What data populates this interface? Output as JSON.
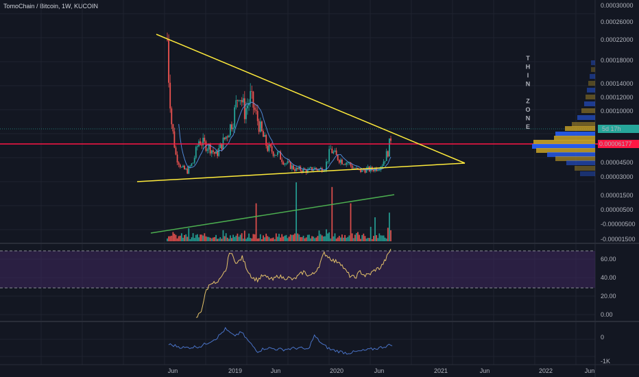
{
  "header": {
    "title": "TomoChain / Bitcoin, 1W, KUCOIN"
  },
  "annotation": {
    "lines": [
      "T",
      "H",
      "I",
      "N",
      "",
      "Z",
      "O",
      "N",
      "E"
    ]
  },
  "price_axis": {
    "ticks": [
      "0.00030000",
      "0.00026000",
      "0.00022000",
      "0.00018000",
      "0.00014000",
      "0.00012000",
      "0.00010000",
      "0.00004500",
      "0.00003000",
      "0.00001500",
      "0.00000500",
      "-0.00000500",
      "-0.00001500"
    ],
    "countdown_badge": "5d 17h",
    "current_price_badge": "0.00006177"
  },
  "rsi_axis": {
    "ticks": [
      "60.00",
      "40.00",
      "20.00",
      "0.00"
    ]
  },
  "osc_axis": {
    "ticks": [
      "0",
      "-1K"
    ]
  },
  "time_axis": {
    "ticks": [
      "Jun",
      "2019",
      "Jun",
      "2020",
      "Jun",
      "2021",
      "Jun",
      "2022",
      "Jun"
    ]
  },
  "colors": {
    "background": "#131722",
    "grid": "#1f2330",
    "up": "#26a69a",
    "down": "#ef5350",
    "trendline": "#ffeb3b",
    "volume_trend": "#4caf50",
    "price_line": "#ff1744",
    "ma": "#5b9cf6",
    "rsi_band": "#3a2458",
    "rsi_line": "#e6c46a",
    "osc_line": "#4a74c9"
  },
  "chart_data": {
    "type": "candlestick",
    "title": "TomoChain / Bitcoin, 1W, KUCOIN",
    "price_anchors": [
      [
        0,
        0.00022
      ],
      [
        1,
        0.00017
      ],
      [
        3,
        0.000105
      ],
      [
        6,
        6e-05
      ],
      [
        10,
        4.2e-05
      ],
      [
        14,
        3.8e-05
      ],
      [
        18,
        5e-05
      ],
      [
        22,
        8e-05
      ],
      [
        26,
        7.5e-05
      ],
      [
        30,
        7e-05
      ],
      [
        34,
        6e-05
      ],
      [
        38,
        7.5e-05
      ],
      [
        42,
        9e-05
      ],
      [
        46,
        0.00011
      ],
      [
        50,
        0.00015
      ],
      [
        54,
        0.00012
      ],
      [
        58,
        0.00014
      ],
      [
        62,
        0.000115
      ],
      [
        66,
        9e-05
      ],
      [
        70,
        7e-05
      ],
      [
        74,
        6.5e-05
      ],
      [
        78,
        6e-05
      ],
      [
        82,
        5e-05
      ],
      [
        86,
        4.5e-05
      ],
      [
        90,
        4e-05
      ],
      [
        94,
        4e-05
      ],
      [
        98,
        3.8e-05
      ],
      [
        102,
        4.2e-05
      ],
      [
        106,
        4e-05
      ],
      [
        110,
        4.3e-05
      ],
      [
        114,
        6.8e-05
      ],
      [
        118,
        5.8e-05
      ],
      [
        122,
        5.2e-05
      ],
      [
        126,
        5e-05
      ],
      [
        130,
        4.2e-05
      ],
      [
        134,
        3.8e-05
      ],
      [
        138,
        4e-05
      ],
      [
        142,
        4e-05
      ],
      [
        146,
        4.2e-05
      ],
      [
        150,
        4.8e-05
      ],
      [
        154,
        6.5e-05
      ],
      [
        156,
        8.5e-05
      ]
    ],
    "volume_spikes": [
      [
        62,
        0.55
      ],
      [
        90,
        1.0
      ],
      [
        115,
        0.9
      ],
      [
        128,
        0.55
      ],
      [
        145,
        0.25
      ],
      [
        155,
        0.35
      ]
    ],
    "rsi_anchors": [
      [
        2,
        2
      ],
      [
        6,
        10
      ],
      [
        10,
        30
      ],
      [
        14,
        38
      ],
      [
        18,
        36
      ],
      [
        22,
        42
      ],
      [
        26,
        52
      ],
      [
        28,
        68
      ],
      [
        30,
        64
      ],
      [
        34,
        56
      ],
      [
        38,
        62
      ],
      [
        42,
        50
      ],
      [
        46,
        42
      ],
      [
        50,
        40
      ],
      [
        54,
        44
      ],
      [
        58,
        42
      ],
      [
        62,
        40
      ],
      [
        66,
        44
      ],
      [
        70,
        42
      ],
      [
        74,
        42
      ],
      [
        78,
        40
      ],
      [
        82,
        44
      ],
      [
        86,
        48
      ],
      [
        90,
        44
      ],
      [
        94,
        46
      ],
      [
        98,
        54
      ],
      [
        102,
        66
      ],
      [
        106,
        62
      ],
      [
        110,
        58
      ],
      [
        114,
        58
      ],
      [
        118,
        50
      ],
      [
        122,
        44
      ],
      [
        126,
        42
      ],
      [
        130,
        48
      ],
      [
        134,
        44
      ],
      [
        138,
        46
      ],
      [
        142,
        50
      ],
      [
        146,
        52
      ],
      [
        150,
        60
      ],
      [
        154,
        70
      ]
    ],
    "osc_anchors": [
      [
        0,
        -300
      ],
      [
        10,
        -500
      ],
      [
        20,
        -400
      ],
      [
        30,
        100
      ],
      [
        35,
        600
      ],
      [
        40,
        200
      ],
      [
        45,
        400
      ],
      [
        50,
        -200
      ],
      [
        55,
        -700
      ],
      [
        60,
        -500
      ],
      [
        70,
        -600
      ],
      [
        80,
        -500
      ],
      [
        86,
        -600
      ],
      [
        90,
        200
      ],
      [
        95,
        -300
      ],
      [
        100,
        -600
      ],
      [
        110,
        -800
      ],
      [
        118,
        -700
      ],
      [
        124,
        -600
      ],
      [
        130,
        -500
      ],
      [
        138,
        -300
      ]
    ],
    "rsi_range": [
      0,
      75
    ],
    "osc_range": [
      -1000,
      1000
    ],
    "annotation": "THIN ZONE"
  }
}
